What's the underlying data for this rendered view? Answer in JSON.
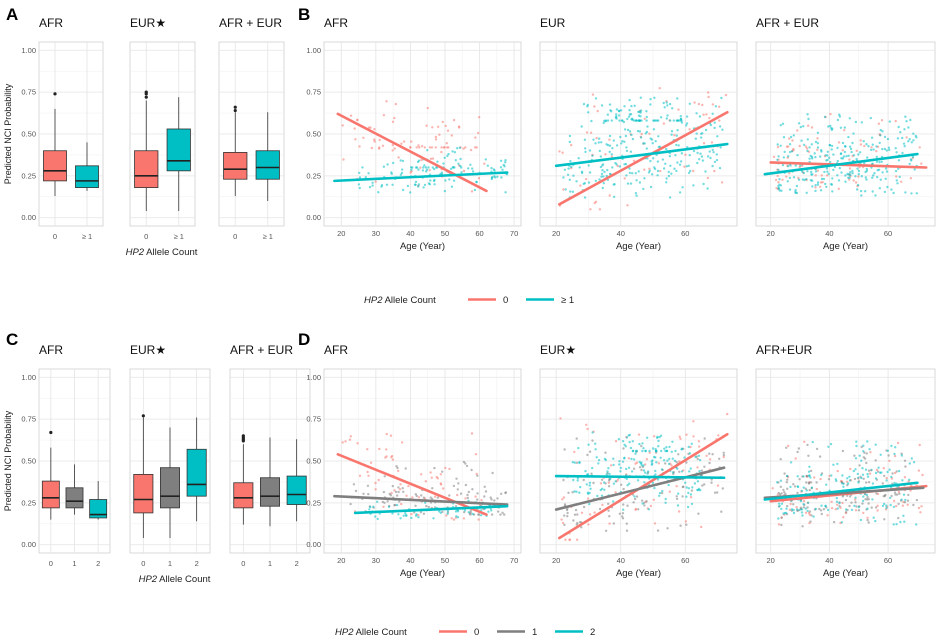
{
  "colors": {
    "zero": "#F8766D",
    "ge1": "#00BFC4",
    "one": "#7F7F7F",
    "two": "#00BFC4"
  },
  "figure": {
    "panel_letters": [
      "A",
      "B",
      "C",
      "D"
    ],
    "legend_top": {
      "title_italic": "HP2",
      "title_rest": " Allele Count",
      "entries": [
        {
          "label": "0",
          "color_key": "zero"
        },
        {
          "label": "≥ 1",
          "color_key": "ge1"
        }
      ]
    },
    "legend_bottom": {
      "title_italic": "HP2",
      "title_rest": " Allele Count",
      "entries": [
        {
          "label": "0",
          "color_key": "zero"
        },
        {
          "label": "1",
          "color_key": "one"
        },
        {
          "label": "2",
          "color_key": "two"
        }
      ]
    }
  },
  "chart_data": [
    {
      "id": "A",
      "type": "box",
      "ylabel": "Predicted NCI Probability",
      "xlabel_italic": "HP2",
      "xlabel_rest": " Allele Count",
      "ylim": [
        0,
        1
      ],
      "yticks": [
        "0.00",
        "0.25",
        "0.50",
        "0.75",
        "1.00"
      ],
      "panels": [
        {
          "title": "AFR",
          "categories": [
            "0",
            "≥ 1"
          ],
          "boxes": [
            {
              "cat": "0",
              "color_key": "zero",
              "min": 0.13,
              "q1": 0.22,
              "median": 0.28,
              "q3": 0.4,
              "max": 0.65,
              "outliers": [
                0.74
              ]
            },
            {
              "cat": "≥ 1",
              "color_key": "ge1",
              "min": 0.16,
              "q1": 0.18,
              "median": 0.22,
              "q3": 0.31,
              "max": 0.45,
              "outliers": []
            }
          ]
        },
        {
          "title": "EUR",
          "star": "★",
          "categories": [
            "0",
            "≥ 1"
          ],
          "boxes": [
            {
              "cat": "0",
              "color_key": "zero",
              "min": 0.04,
              "q1": 0.18,
              "median": 0.25,
              "q3": 0.4,
              "max": 0.7,
              "outliers": [
                0.72,
                0.74,
                0.75
              ]
            },
            {
              "cat": "≥ 1",
              "color_key": "ge1",
              "min": 0.04,
              "q1": 0.28,
              "median": 0.34,
              "q3": 0.53,
              "max": 0.72,
              "outliers": []
            }
          ]
        },
        {
          "title": "AFR + EUR",
          "categories": [
            "0",
            "≥ 1"
          ],
          "boxes": [
            {
              "cat": "0",
              "color_key": "zero",
              "min": 0.13,
              "q1": 0.23,
              "median": 0.29,
              "q3": 0.39,
              "max": 0.63,
              "outliers": [
                0.64,
                0.66
              ]
            },
            {
              "cat": "≥ 1",
              "color_key": "ge1",
              "min": 0.1,
              "q1": 0.23,
              "median": 0.3,
              "q3": 0.4,
              "max": 0.63,
              "outliers": []
            }
          ]
        }
      ]
    },
    {
      "id": "B",
      "type": "scatter",
      "xlabel": "Age (Year)",
      "ylim": [
        0,
        1
      ],
      "yticks": [
        "0.00",
        "0.25",
        "0.50",
        "0.75",
        "1.00"
      ],
      "panels": [
        {
          "title": "AFR",
          "xlim": [
            15,
            72
          ],
          "xticks": [
            20,
            30,
            40,
            50,
            60,
            70
          ],
          "series": [
            {
              "group": "0",
              "color_key": "zero",
              "fit_x": [
                19,
                62
              ],
              "fit_y": [
                0.62,
                0.16
              ],
              "clouds": [
                {
                  "xr": [
                    20,
                    62
                  ],
                  "yr": [
                    0.15,
                    0.7
                  ],
                  "n": 60
                },
                {
                  "xr": [
                    35,
                    60
                  ],
                  "yr": [
                    0.42,
                    0.6
                  ],
                  "n": 30
                }
              ]
            },
            {
              "group": "≥ 1",
              "color_key": "ge1",
              "fit_x": [
                18,
                68
              ],
              "fit_y": [
                0.22,
                0.27
              ],
              "clouds": [
                {
                  "xr": [
                    25,
                    68
                  ],
                  "yr": [
                    0.15,
                    0.35
                  ],
                  "n": 110
                },
                {
                  "xr": [
                    40,
                    55
                  ],
                  "yr": [
                    0.3,
                    0.42
                  ],
                  "n": 25
                }
              ]
            }
          ]
        },
        {
          "title": "EUR",
          "xlim": [
            15,
            76
          ],
          "xticks": [
            20,
            40,
            60
          ],
          "series": [
            {
              "group": "0",
              "color_key": "zero",
              "fit_x": [
                21,
                73
              ],
              "fit_y": [
                0.08,
                0.63
              ],
              "clouds": [
                {
                  "xr": [
                    21,
                    73
                  ],
                  "yr": [
                    0.05,
                    0.78
                  ],
                  "n": 70
                }
              ]
            },
            {
              "group": "≥ 1",
              "color_key": "ge1",
              "fit_x": [
                20,
                73
              ],
              "fit_y": [
                0.31,
                0.44
              ],
              "clouds": [
                {
                  "xr": [
                    22,
                    72
                  ],
                  "yr": [
                    0.12,
                    0.72
                  ],
                  "n": 260
                },
                {
                  "xr": [
                    35,
                    60
                  ],
                  "yr": [
                    0.58,
                    0.68
                  ],
                  "n": 60
                }
              ]
            }
          ]
        },
        {
          "title": "AFR + EUR",
          "xlim": [
            15,
            76
          ],
          "xticks": [
            20,
            40,
            60
          ],
          "series": [
            {
              "group": "0",
              "color_key": "zero",
              "fit_x": [
                20,
                73
              ],
              "fit_y": [
                0.33,
                0.3
              ],
              "clouds": [
                {
                  "xr": [
                    20,
                    73
                  ],
                  "yr": [
                    0.12,
                    0.62
                  ],
                  "n": 90
                }
              ]
            },
            {
              "group": "≥ 1",
              "color_key": "ge1",
              "fit_x": [
                18,
                70
              ],
              "fit_y": [
                0.26,
                0.38
              ],
              "clouds": [
                {
                  "xr": [
                    22,
                    70
                  ],
                  "yr": [
                    0.12,
                    0.62
                  ],
                  "n": 280
                }
              ]
            }
          ]
        }
      ]
    },
    {
      "id": "C",
      "type": "box",
      "ylabel": "Predicted NCI Probability",
      "xlabel_italic": "HP2",
      "xlabel_rest": " Allele Count",
      "ylim": [
        0,
        1
      ],
      "yticks": [
        "0.00",
        "0.25",
        "0.50",
        "0.75",
        "1.00"
      ],
      "panels": [
        {
          "title": "AFR",
          "categories": [
            "0",
            "1",
            "2"
          ],
          "boxes": [
            {
              "cat": "0",
              "color_key": "zero",
              "min": 0.15,
              "q1": 0.22,
              "median": 0.28,
              "q3": 0.38,
              "max": 0.58,
              "outliers": [
                0.67
              ]
            },
            {
              "cat": "1",
              "color_key": "one",
              "min": 0.18,
              "q1": 0.22,
              "median": 0.26,
              "q3": 0.34,
              "max": 0.48,
              "outliers": []
            },
            {
              "cat": "2",
              "color_key": "two",
              "min": 0.15,
              "q1": 0.16,
              "median": 0.18,
              "q3": 0.27,
              "max": 0.38,
              "outliers": []
            }
          ]
        },
        {
          "title": "EUR",
          "star": "★",
          "categories": [
            "0",
            "1",
            "2"
          ],
          "boxes": [
            {
              "cat": "0",
              "color_key": "zero",
              "min": 0.04,
              "q1": 0.19,
              "median": 0.27,
              "q3": 0.42,
              "max": 0.76,
              "outliers": [
                0.77
              ]
            },
            {
              "cat": "1",
              "color_key": "one",
              "min": 0.04,
              "q1": 0.22,
              "median": 0.29,
              "q3": 0.46,
              "max": 0.7,
              "outliers": []
            },
            {
              "cat": "2",
              "color_key": "two",
              "min": 0.14,
              "q1": 0.29,
              "median": 0.36,
              "q3": 0.57,
              "max": 0.76,
              "outliers": []
            }
          ]
        },
        {
          "title": "AFR + EUR",
          "categories": [
            "0",
            "1",
            "2"
          ],
          "boxes": [
            {
              "cat": "0",
              "color_key": "zero",
              "min": 0.12,
              "q1": 0.22,
              "median": 0.28,
              "q3": 0.37,
              "max": 0.6,
              "outliers": [
                0.62,
                0.63,
                0.64,
                0.65
              ]
            },
            {
              "cat": "1",
              "color_key": "one",
              "min": 0.11,
              "q1": 0.23,
              "median": 0.29,
              "q3": 0.4,
              "max": 0.64,
              "outliers": []
            },
            {
              "cat": "2",
              "color_key": "two",
              "min": 0.14,
              "q1": 0.24,
              "median": 0.3,
              "q3": 0.41,
              "max": 0.63,
              "outliers": []
            }
          ]
        }
      ]
    },
    {
      "id": "D",
      "type": "scatter",
      "xlabel": "Age (Year)",
      "ylim": [
        0,
        1
      ],
      "yticks": [
        "0.00",
        "0.25",
        "0.50",
        "0.75",
        "1.00"
      ],
      "panels": [
        {
          "title": "AFR",
          "xlim": [
            15,
            72
          ],
          "xticks": [
            20,
            30,
            40,
            50,
            60,
            70
          ],
          "series": [
            {
              "group": "0",
              "color_key": "zero",
              "fit_x": [
                19,
                62
              ],
              "fit_y": [
                0.54,
                0.18
              ],
              "clouds": [
                {
                  "xr": [
                    19,
                    62
                  ],
                  "yr": [
                    0.15,
                    0.68
                  ],
                  "n": 70
                }
              ]
            },
            {
              "group": "1",
              "color_key": "one",
              "fit_x": [
                18,
                68
              ],
              "fit_y": [
                0.29,
                0.24
              ],
              "clouds": [
                {
                  "xr": [
                    22,
                    68
                  ],
                  "yr": [
                    0.18,
                    0.5
                  ],
                  "n": 110
                }
              ]
            },
            {
              "group": "2",
              "color_key": "two",
              "fit_x": [
                24,
                68
              ],
              "fit_y": [
                0.19,
                0.23
              ],
              "clouds": [
                {
                  "xr": [
                    28,
                    66
                  ],
                  "yr": [
                    0.15,
                    0.3
                  ],
                  "n": 70
                }
              ]
            }
          ]
        },
        {
          "title": "EUR",
          "star": "★",
          "xlim": [
            15,
            76
          ],
          "xticks": [
            20,
            40,
            60
          ],
          "series": [
            {
              "group": "0",
              "color_key": "zero",
              "fit_x": [
                21,
                73
              ],
              "fit_y": [
                0.04,
                0.66
              ],
              "clouds": [
                {
                  "xr": [
                    21,
                    73
                  ],
                  "yr": [
                    0.03,
                    0.78
                  ],
                  "n": 80
                }
              ]
            },
            {
              "group": "1",
              "color_key": "one",
              "fit_x": [
                20,
                72
              ],
              "fit_y": [
                0.21,
                0.46
              ],
              "clouds": [
                {
                  "xr": [
                    22,
                    72
                  ],
                  "yr": [
                    0.08,
                    0.66
                  ],
                  "n": 130
                }
              ]
            },
            {
              "group": "2",
              "color_key": "two",
              "fit_x": [
                20,
                72
              ],
              "fit_y": [
                0.41,
                0.4
              ],
              "clouds": [
                {
                  "xr": [
                    25,
                    65
                  ],
                  "yr": [
                    0.2,
                    0.68
                  ],
                  "n": 170
                },
                {
                  "xr": [
                    38,
                    58
                  ],
                  "yr": [
                    0.56,
                    0.66
                  ],
                  "n": 40
                }
              ]
            }
          ]
        },
        {
          "title": "AFR+EUR",
          "xlim": [
            15,
            76
          ],
          "xticks": [
            20,
            40,
            60
          ],
          "series": [
            {
              "group": "0",
              "color_key": "zero",
              "fit_x": [
                20,
                73
              ],
              "fit_y": [
                0.26,
                0.35
              ],
              "clouds": [
                {
                  "xr": [
                    20,
                    73
                  ],
                  "yr": [
                    0.1,
                    0.62
                  ],
                  "n": 90
                }
              ]
            },
            {
              "group": "1",
              "color_key": "one",
              "fit_x": [
                18,
                72
              ],
              "fit_y": [
                0.28,
                0.34
              ],
              "clouds": [
                {
                  "xr": [
                    22,
                    70
                  ],
                  "yr": [
                    0.1,
                    0.6
                  ],
                  "n": 160
                }
              ]
            },
            {
              "group": "2",
              "color_key": "two",
              "fit_x": [
                18,
                70
              ],
              "fit_y": [
                0.27,
                0.37
              ],
              "clouds": [
                {
                  "xr": [
                    22,
                    70
                  ],
                  "yr": [
                    0.12,
                    0.62
                  ],
                  "n": 160
                }
              ]
            }
          ]
        }
      ]
    }
  ]
}
